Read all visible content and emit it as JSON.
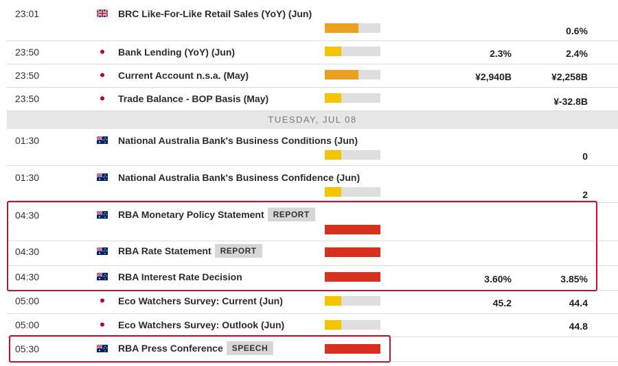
{
  "colors": {
    "medium_impact": "#eaa11f",
    "low_impact": "#f5c400",
    "high_impact": "#d7301f",
    "impact_track": "#dedede",
    "highlight_border": "#c8102e"
  },
  "day_header": "TUESDAY, JUL 08",
  "rows": [
    {
      "time": "23:01",
      "flag": "uk-flag-icon",
      "event": "BRC Like-For-Like Retail Sales (YoY) (Jun)",
      "tag": "",
      "impact_level": 0.6,
      "impact_color": "#eaa11f",
      "forecast": "",
      "previous": "0.6%"
    },
    {
      "time": "23:50",
      "flag": "jp-flag-icon",
      "event": "Bank Lending (YoY) (Jun)",
      "tag": "",
      "impact_level": 0.3,
      "impact_color": "#f5c400",
      "forecast": "2.3%",
      "previous": "2.4%"
    },
    {
      "time": "23:50",
      "flag": "jp-flag-icon",
      "event": "Current Account n.s.a. (May)",
      "tag": "",
      "impact_level": 0.6,
      "impact_color": "#eaa11f",
      "forecast": "¥2,940B",
      "previous": "¥2,258B"
    },
    {
      "time": "23:50",
      "flag": "jp-flag-icon",
      "event": "Trade Balance - BOP Basis (May)",
      "tag": "",
      "impact_level": 0.3,
      "impact_color": "#f5c400",
      "forecast": "",
      "previous": "¥-32.8B"
    },
    {
      "time": "01:30",
      "flag": "au-flag-icon",
      "event": "National Australia Bank's Business Conditions (Jun)",
      "tag": "",
      "impact_level": 0.3,
      "impact_color": "#f5c400",
      "forecast": "",
      "previous": "0"
    },
    {
      "time": "01:30",
      "flag": "au-flag-icon",
      "event": "National Australia Bank's Business Confidence (Jun)",
      "tag": "",
      "impact_level": 0.3,
      "impact_color": "#f5c400",
      "forecast": "",
      "previous": "2"
    },
    {
      "time": "04:30",
      "flag": "au-flag-icon",
      "event": "RBA Monetary Policy Statement",
      "tag": "REPORT",
      "impact_level": 1.0,
      "impact_color": "#d7301f",
      "forecast": "",
      "previous": ""
    },
    {
      "time": "04:30",
      "flag": "au-flag-icon",
      "event": "RBA Rate Statement",
      "tag": "REPORT",
      "impact_level": 1.0,
      "impact_color": "#d7301f",
      "forecast": "",
      "previous": ""
    },
    {
      "time": "04:30",
      "flag": "au-flag-icon",
      "event": "RBA Interest Rate Decision",
      "tag": "",
      "impact_level": 1.0,
      "impact_color": "#d7301f",
      "forecast": "3.60%",
      "previous": "3.85%"
    },
    {
      "time": "05:00",
      "flag": "jp-flag-icon",
      "event": "Eco Watchers Survey: Current (Jun)",
      "tag": "",
      "impact_level": 0.3,
      "impact_color": "#f5c400",
      "forecast": "45.2",
      "previous": "44.4"
    },
    {
      "time": "05:00",
      "flag": "jp-flag-icon",
      "event": "Eco Watchers Survey: Outlook (Jun)",
      "tag": "",
      "impact_level": 0.3,
      "impact_color": "#f5c400",
      "forecast": "",
      "previous": "44.8"
    },
    {
      "time": "05:30",
      "flag": "au-flag-icon",
      "event": "RBA Press Conference",
      "tag": "SPEECH",
      "impact_level": 1.0,
      "impact_color": "#d7301f",
      "forecast": "",
      "previous": ""
    }
  ]
}
